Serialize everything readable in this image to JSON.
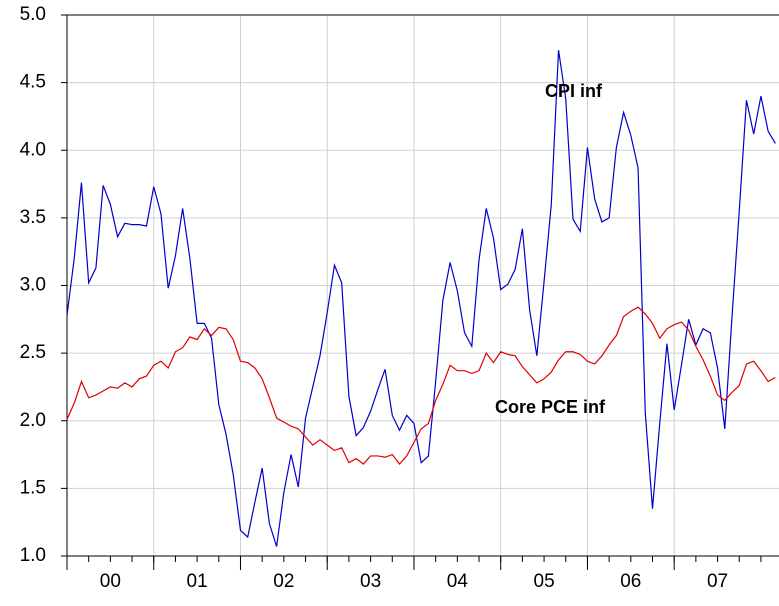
{
  "chart_data": {
    "type": "line",
    "x": [
      0,
      1,
      2,
      3,
      4,
      5,
      6,
      7,
      8,
      9,
      10,
      11,
      12,
      13,
      14,
      15,
      16,
      17,
      18,
      19,
      20,
      21,
      22,
      23,
      24,
      25,
      26,
      27,
      28,
      29,
      30,
      31,
      32,
      33,
      34,
      35,
      36,
      37,
      38,
      39,
      40,
      41,
      42,
      43,
      44,
      45,
      46,
      47,
      48,
      49,
      50,
      51,
      52,
      53,
      54,
      55,
      56,
      57,
      58,
      59,
      60,
      61,
      62,
      63,
      64,
      65,
      66,
      67,
      68,
      69,
      70,
      71,
      72,
      73,
      74,
      75,
      76,
      77,
      78,
      79,
      80,
      81,
      82,
      83,
      84,
      85,
      86,
      87,
      88,
      89,
      90,
      91,
      92,
      93,
      94,
      95,
      96,
      97,
      98
    ],
    "series": [
      {
        "name": "CPI inf",
        "color": "#0000cc",
        "values": [
          2.78,
          3.2,
          3.76,
          3.02,
          3.13,
          3.74,
          3.6,
          3.36,
          3.46,
          3.45,
          3.45,
          3.44,
          3.73,
          3.53,
          2.98,
          3.22,
          3.57,
          3.2,
          2.72,
          2.72,
          2.61,
          2.12,
          1.9,
          1.6,
          1.19,
          1.14,
          1.4,
          1.65,
          1.24,
          1.07,
          1.47,
          1.75,
          1.51,
          2.02,
          2.25,
          2.48,
          2.8,
          3.15,
          3.02,
          2.18,
          1.89,
          1.95,
          2.07,
          2.23,
          2.38,
          2.04,
          1.93,
          2.04,
          1.98,
          1.69,
          1.74,
          2.29,
          2.89,
          3.17,
          2.96,
          2.65,
          2.55,
          3.19,
          3.57,
          3.35,
          2.97,
          3.01,
          3.12,
          3.42,
          2.82,
          2.48,
          3.03,
          3.6,
          4.74,
          4.38,
          3.49,
          3.4,
          4.02,
          3.64,
          3.47,
          3.5,
          4.02,
          4.28,
          4.11,
          3.87,
          2.06,
          1.35,
          1.98,
          2.57,
          2.08,
          2.41,
          2.75,
          2.56,
          2.68,
          2.65,
          2.39,
          1.94,
          2.77,
          3.55,
          4.37,
          4.12,
          4.4,
          4.14,
          4.05
        ]
      },
      {
        "name": "Core PCE inf",
        "color": "#e00000",
        "values": [
          2.01,
          2.13,
          2.29,
          2.17,
          2.19,
          2.22,
          2.25,
          2.24,
          2.28,
          2.25,
          2.31,
          2.33,
          2.41,
          2.44,
          2.39,
          2.51,
          2.54,
          2.62,
          2.6,
          2.68,
          2.63,
          2.69,
          2.68,
          2.6,
          2.44,
          2.43,
          2.39,
          2.31,
          2.17,
          2.02,
          1.99,
          1.96,
          1.94,
          1.88,
          1.82,
          1.86,
          1.82,
          1.78,
          1.8,
          1.69,
          1.72,
          1.68,
          1.74,
          1.74,
          1.73,
          1.75,
          1.68,
          1.74,
          1.84,
          1.94,
          1.98,
          2.15,
          2.27,
          2.41,
          2.37,
          2.37,
          2.35,
          2.37,
          2.5,
          2.43,
          2.51,
          2.49,
          2.48,
          2.4,
          2.34,
          2.28,
          2.31,
          2.36,
          2.45,
          2.51,
          2.51,
          2.49,
          2.44,
          2.42,
          2.48,
          2.56,
          2.63,
          2.77,
          2.81,
          2.84,
          2.79,
          2.72,
          2.61,
          2.68,
          2.71,
          2.73,
          2.67,
          2.55,
          2.45,
          2.33,
          2.19,
          2.15,
          2.21,
          2.26,
          2.42,
          2.44,
          2.37,
          2.29,
          2.32
        ]
      }
    ],
    "xlim": [
      0,
      98.5
    ],
    "xticks": [
      {
        "value": 6,
        "label": "00"
      },
      {
        "value": 18,
        "label": "01"
      },
      {
        "value": 30,
        "label": "02"
      },
      {
        "value": 42,
        "label": "03"
      },
      {
        "value": 54,
        "label": "04"
      },
      {
        "value": 66,
        "label": "05"
      },
      {
        "value": 78,
        "label": "06"
      },
      {
        "value": 90,
        "label": "07"
      }
    ],
    "ylim": [
      1,
      5
    ],
    "yticks": [
      {
        "value": 1,
        "label": "1.0"
      },
      {
        "value": 1.5,
        "label": "1.5"
      },
      {
        "value": 2,
        "label": "2.0"
      },
      {
        "value": 2.5,
        "label": "2.5"
      },
      {
        "value": 3,
        "label": "3.0"
      },
      {
        "value": 3.5,
        "label": "3.5"
      },
      {
        "value": 4,
        "label": "4.0"
      },
      {
        "value": 4.5,
        "label": "4.5"
      },
      {
        "value": 5,
        "label": "5.0"
      }
    ],
    "grid": true,
    "annotations": [
      "CPI inf",
      "Core PCE inf"
    ]
  }
}
